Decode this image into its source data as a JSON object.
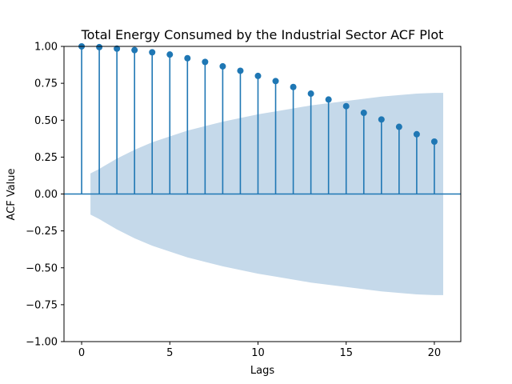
{
  "chart_data": {
    "type": "scatter",
    "title": "Total Energy Consumed by the Industrial Sector ACF Plot",
    "xlabel": "Lags",
    "ylabel": "ACF Value",
    "xlim": [
      -1,
      21.5
    ],
    "ylim": [
      -1.0,
      1.0
    ],
    "x_ticks": [
      0,
      5,
      10,
      15,
      20
    ],
    "x_tick_labels": [
      "0",
      "5",
      "10",
      "15",
      "20"
    ],
    "y_ticks": [
      1.0,
      0.75,
      0.5,
      0.25,
      0.0,
      -0.25,
      -0.5,
      -0.75,
      -1.0
    ],
    "y_tick_labels": [
      "1.00",
      "0.75",
      "0.50",
      "0.25",
      "0.00",
      "−0.25",
      "−0.50",
      "−0.75",
      "−1.00"
    ],
    "grid": false,
    "lags": [
      0,
      1,
      2,
      3,
      4,
      5,
      6,
      7,
      8,
      9,
      10,
      11,
      12,
      13,
      14,
      15,
      16,
      17,
      18,
      19,
      20
    ],
    "acf": [
      1.0,
      0.995,
      0.985,
      0.975,
      0.96,
      0.945,
      0.92,
      0.895,
      0.865,
      0.835,
      0.8,
      0.765,
      0.725,
      0.68,
      0.64,
      0.595,
      0.55,
      0.505,
      0.455,
      0.405,
      0.355
    ],
    "confidence_band": {
      "x": [
        0.5,
        1,
        2,
        3,
        4,
        5,
        6,
        7,
        8,
        9,
        10,
        11,
        12,
        13,
        14,
        15,
        16,
        17,
        18,
        19,
        20,
        20.5
      ],
      "upper": [
        0.14,
        0.17,
        0.24,
        0.3,
        0.35,
        0.39,
        0.43,
        0.46,
        0.49,
        0.515,
        0.54,
        0.56,
        0.58,
        0.6,
        0.615,
        0.63,
        0.645,
        0.66,
        0.67,
        0.68,
        0.685,
        0.685
      ]
    },
    "colors": {
      "marker": "#1f77b4",
      "band": "#c5d9ea",
      "zero_line": "#1f77b4"
    }
  }
}
